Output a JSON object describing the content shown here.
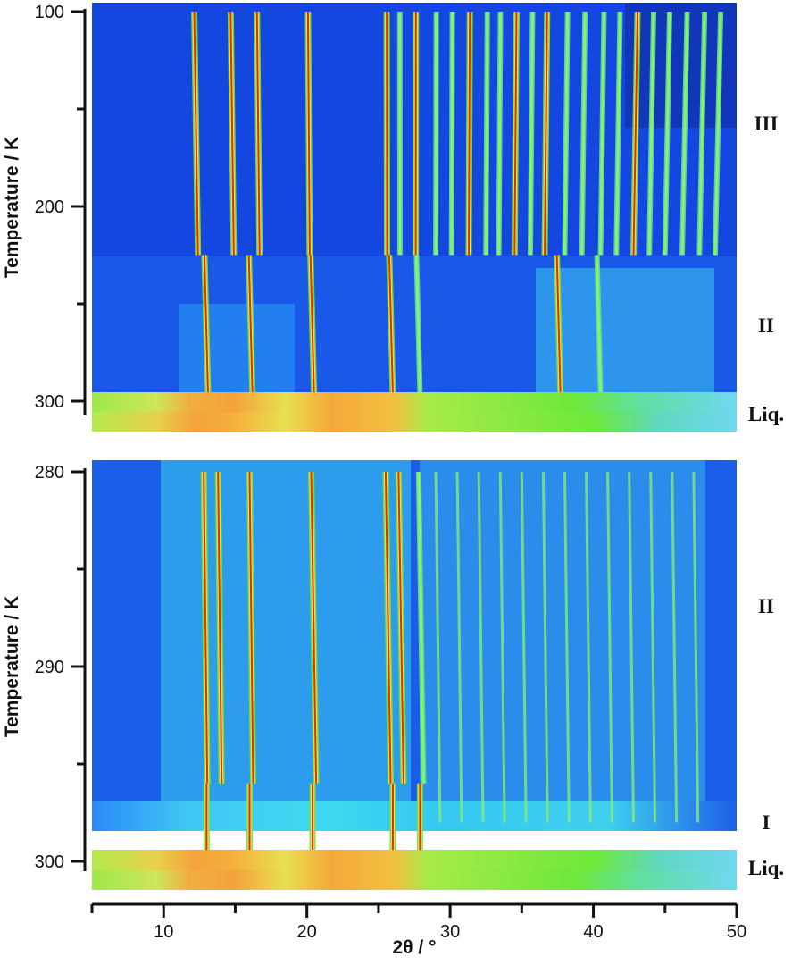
{
  "chart_data": [
    {
      "type": "heatmap",
      "panel": "top",
      "ylabel": "Temperature / K",
      "xlim": [
        5,
        50
      ],
      "ylim": [
        100,
        310
      ],
      "y_inverted": true,
      "y_major_ticks": [
        100,
        200,
        300
      ],
      "y_minor_ticks": [
        150,
        250
      ],
      "colormap": [
        "#0a1a7a",
        "#1446e0",
        "#1f7af5",
        "#3fd8f0",
        "#8af26a",
        "#6ee83a",
        "#f2e640",
        "#f5a23a",
        "#e62a1a"
      ],
      "phase_regions": [
        {
          "label": "III",
          "t_from": 100,
          "t_to": 225
        },
        {
          "label": "II",
          "t_from": 225,
          "t_to": 296
        },
        {
          "label": "Liq.",
          "t_from": 296,
          "t_to": 310
        }
      ],
      "peaks": [
        {
          "phase": "III",
          "positions": [
            12.4,
            14.9,
            16.7,
            20.2,
            25.6,
            26.5,
            27.6,
            29.0,
            30.1,
            31.3,
            32.5,
            33.4,
            34.5,
            35.6,
            36.6,
            38.0,
            39.2,
            40.5,
            41.6,
            42.8,
            43.9,
            45.0,
            46.2,
            47.4,
            48.5
          ]
        },
        {
          "phase": "II",
          "positions": [
            13.0,
            16.1,
            20.4,
            25.9,
            27.8,
            37.6,
            40.4
          ]
        }
      ],
      "phase_labels": [
        "III",
        "II",
        "Liq."
      ]
    },
    {
      "type": "heatmap",
      "panel": "bottom",
      "ylabel": "Temperature / K",
      "xlabel": "2θ / °",
      "xlim": [
        5,
        50
      ],
      "ylim": [
        280,
        301.5
      ],
      "y_inverted": true,
      "x_major_ticks": [
        10,
        20,
        30,
        40,
        50
      ],
      "x_minor_ticks": [
        5,
        15,
        25,
        35,
        45
      ],
      "y_major_ticks": [
        280,
        290,
        300
      ],
      "y_minor_ticks": [
        285,
        295
      ],
      "phase_regions": [
        {
          "label": "II",
          "t_from": 280,
          "t_to": 296
        },
        {
          "label": "I",
          "t_from": 296,
          "t_to": 299.4
        },
        {
          "label": "Liq.",
          "t_from": 299.4,
          "t_to": 301.5
        }
      ],
      "peaks": [
        {
          "phase": "II",
          "positions": [
            12.8,
            13.8,
            16.0,
            20.3,
            25.5,
            26.4,
            27.8
          ]
        },
        {
          "phase": "I",
          "positions": [
            13.0,
            16.0,
            20.4,
            26.0,
            27.9
          ]
        }
      ],
      "phase_labels": [
        "II",
        "I",
        "Liq."
      ]
    }
  ]
}
